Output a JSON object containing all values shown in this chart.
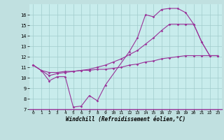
{
  "background_color": "#c0e0e0",
  "plot_bg": "#c8ecec",
  "line_color": "#993399",
  "grid_color": "#a0cccc",
  "xlabel": "Windchill (Refroidissement éolien,°C)",
  "xlim": [
    -0.5,
    23.5
  ],
  "ylim": [
    7,
    17
  ],
  "yticks": [
    7,
    8,
    9,
    10,
    11,
    12,
    13,
    14,
    15,
    16
  ],
  "xticks": [
    0,
    1,
    2,
    3,
    4,
    5,
    6,
    7,
    8,
    9,
    10,
    11,
    12,
    13,
    14,
    15,
    16,
    17,
    18,
    19,
    20,
    21,
    22,
    23
  ],
  "line1_x": [
    0,
    1,
    2,
    3,
    4,
    5,
    6,
    7,
    8,
    9,
    12,
    13,
    14,
    15,
    16,
    17,
    18,
    19,
    20,
    21,
    22,
    23
  ],
  "line1_y": [
    11.2,
    10.7,
    9.7,
    10.1,
    10.1,
    7.2,
    7.3,
    8.3,
    7.8,
    9.3,
    12.5,
    13.8,
    16.0,
    15.8,
    16.5,
    16.6,
    16.6,
    16.2,
    15.1,
    13.4,
    12.1,
    12.1
  ],
  "line2_x": [
    0,
    1,
    2,
    3,
    4,
    5,
    6,
    7,
    8,
    9,
    10,
    11,
    12,
    13,
    14,
    15,
    16,
    17,
    18,
    19,
    20,
    21,
    22,
    23
  ],
  "line2_y": [
    11.2,
    10.7,
    10.5,
    10.5,
    10.6,
    10.6,
    10.7,
    10.7,
    10.8,
    10.8,
    10.9,
    11.0,
    11.2,
    11.3,
    11.5,
    11.6,
    11.8,
    11.9,
    12.0,
    12.1,
    12.1,
    12.1,
    12.1,
    12.1
  ],
  "line3_x": [
    0,
    1,
    2,
    3,
    4,
    5,
    6,
    7,
    8,
    9,
    10,
    11,
    12,
    13,
    14,
    15,
    16,
    17,
    18,
    19,
    20,
    21,
    22,
    23
  ],
  "line3_y": [
    11.2,
    10.7,
    10.2,
    10.4,
    10.5,
    10.6,
    10.7,
    10.8,
    11.0,
    11.2,
    11.5,
    11.8,
    12.2,
    12.6,
    13.2,
    13.8,
    14.5,
    15.1,
    15.1,
    15.1,
    15.1,
    13.4,
    12.1,
    12.1
  ]
}
